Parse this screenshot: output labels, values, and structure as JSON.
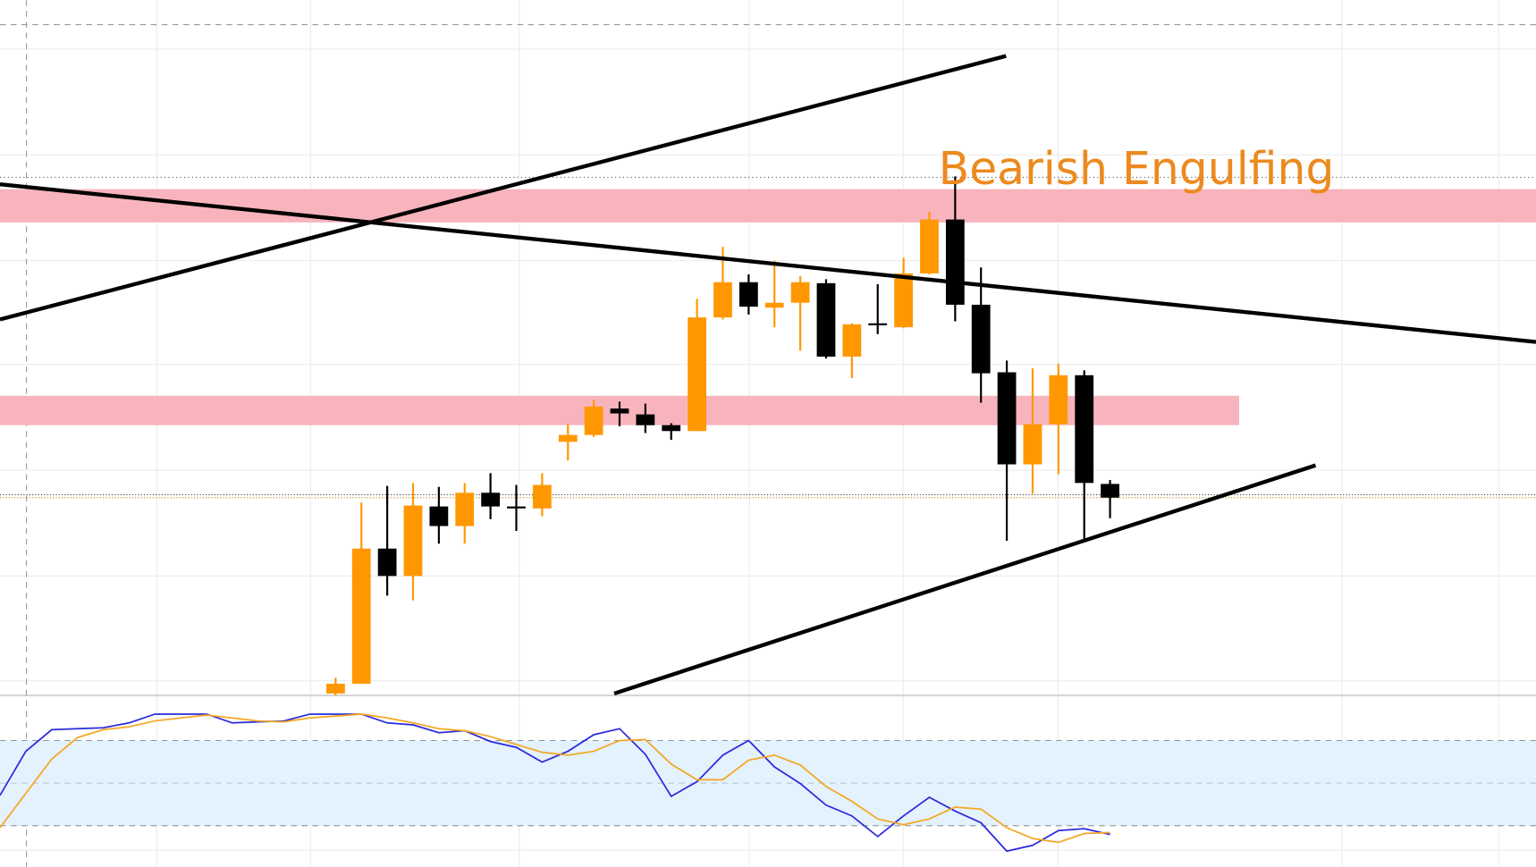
{
  "chart_data": [
    {
      "type": "candlestick",
      "annotation": "Bearish Engulfing",
      "up_color": "#ff9800",
      "down_color": "#000000",
      "x": [
        13,
        14,
        15,
        16,
        17,
        18,
        19,
        20,
        21,
        22,
        23,
        24,
        25,
        26,
        27,
        28,
        29,
        30,
        31,
        32,
        33,
        34,
        35,
        36,
        37,
        38,
        39,
        40,
        41,
        42,
        43
      ],
      "open": [
        2,
        12,
        150,
        122,
        193,
        173,
        207,
        193,
        191,
        259,
        266,
        293,
        287,
        276,
        270,
        386,
        422,
        396,
        401,
        421,
        346,
        380,
        376,
        431,
        486,
        399,
        330,
        236,
        277,
        327,
        216
      ],
      "high": [
        18,
        197,
        214,
        217,
        213,
        217,
        227,
        215,
        227,
        277,
        302,
        300,
        298,
        278,
        405,
        458,
        430,
        444,
        428,
        425,
        380,
        420,
        447,
        494,
        530,
        437,
        342,
        334,
        339,
        332,
        220
      ],
      "low": [
        0,
        12,
        102,
        97,
        155,
        155,
        180,
        168,
        183,
        240,
        264,
        275,
        268,
        261,
        270,
        384,
        389,
        376,
        352,
        344,
        324,
        369,
        375,
        430,
        382,
        299,
        158,
        206,
        226,
        160,
        181
      ],
      "close": [
        12,
        150,
        122,
        194,
        173,
        207,
        193,
        191,
        215,
        266,
        295,
        288,
        276,
        270,
        386,
        422,
        397,
        401,
        422,
        346,
        379,
        378,
        431,
        486,
        399,
        329,
        236,
        277,
        327,
        217,
        202
      ],
      "xlim": [
        0,
        59.5
      ],
      "ylim": [
        0,
        710
      ]
    },
    {
      "type": "line",
      "x": [
        0,
        1,
        2,
        3,
        4,
        5,
        6,
        7,
        8,
        9,
        10,
        11,
        12,
        13,
        14,
        15,
        16,
        17,
        18,
        19,
        20,
        21,
        22,
        23,
        24,
        25,
        26,
        27,
        28,
        29,
        30,
        31,
        32,
        33,
        34,
        35,
        36,
        37,
        38,
        39,
        40,
        41,
        42,
        43
      ],
      "series": [
        {
          "color": "#2b2bdc",
          "values": [
            41.4,
            72.4,
            87.6,
            88.3,
            89.0,
            92.4,
            98.6,
            98.6,
            98.6,
            92.4,
            93.1,
            93.8,
            98.6,
            98.6,
            98.6,
            92.4,
            91.0,
            85.5,
            86.9,
            79.3,
            75.2,
            64.8,
            72.4,
            84.1,
            88.3,
            70.3,
            40.7,
            51.0,
            69.7,
            80.0,
            61.4,
            49.7,
            34.5,
            26.9,
            12.4,
            26.9,
            40.0,
            30.3,
            22.1,
            2.1,
            6.2,
            16.6,
            17.9,
            13.8
          ]
        },
        {
          "color": "#f5a623",
          "values": [
            18.6,
            42.8,
            66.9,
            82.1,
            87.6,
            89.7,
            93.8,
            95.9,
            97.9,
            95.9,
            93.8,
            93.1,
            95.9,
            97.2,
            98.6,
            95.9,
            92.4,
            88.3,
            86.9,
            82.8,
            77.2,
            71.7,
            69.7,
            72.4,
            80.0,
            80.7,
            63.4,
            52.4,
            52.4,
            66.2,
            69.7,
            62.8,
            47.6,
            37.2,
            24.8,
            20.7,
            24.8,
            33.1,
            31.7,
            18.6,
            11.0,
            8.3,
            14.5,
            15.2
          ]
        }
      ],
      "xlim": [
        0,
        59.5
      ],
      "ylim": [
        0,
        100
      ],
      "yticks": [
        20,
        50,
        80
      ],
      "band": [
        20,
        80
      ]
    }
  ]
}
